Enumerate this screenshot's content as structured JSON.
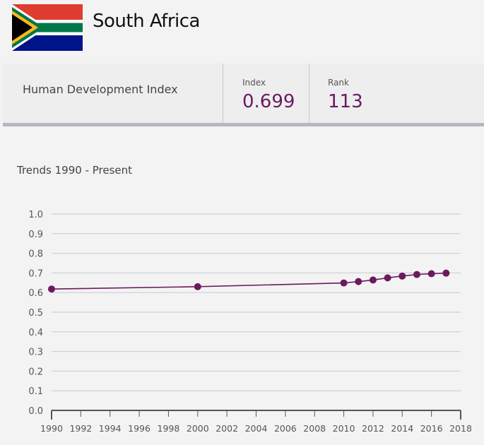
{
  "country": {
    "name": "South Africa"
  },
  "hdi": {
    "label": "Human Development Index",
    "index_label": "Index",
    "index_value": "0.699",
    "rank_label": "Rank",
    "rank_value": "113"
  },
  "trends": {
    "title": "Trends 1990 - Present"
  },
  "colors": {
    "accent": "#6b1a5f",
    "gridline": "#c9cad2",
    "axis": "#555555"
  },
  "chart_data": {
    "type": "line",
    "title": "Trends 1990 - Present",
    "xlabel": "",
    "ylabel": "",
    "x_ticks": [
      "1990",
      "1992",
      "1994",
      "1996",
      "1998",
      "2000",
      "2002",
      "2004",
      "2006",
      "2008",
      "2010",
      "2012",
      "2014",
      "2016",
      "2018"
    ],
    "y_ticks": [
      "0.0",
      "0.1",
      "0.2",
      "0.3",
      "0.4",
      "0.5",
      "0.6",
      "0.7",
      "0.8",
      "0.9",
      "1.0"
    ],
    "xlim": [
      1990,
      2018
    ],
    "ylim": [
      0,
      1
    ],
    "grid": true,
    "legend": "none",
    "series": [
      {
        "x": [
          1990,
          2000,
          2010,
          2011,
          2012,
          2013,
          2014,
          2015,
          2016,
          2017
        ],
        "values": [
          0.618,
          0.63,
          0.649,
          0.656,
          0.664,
          0.675,
          0.684,
          0.692,
          0.696,
          0.699
        ]
      }
    ]
  }
}
